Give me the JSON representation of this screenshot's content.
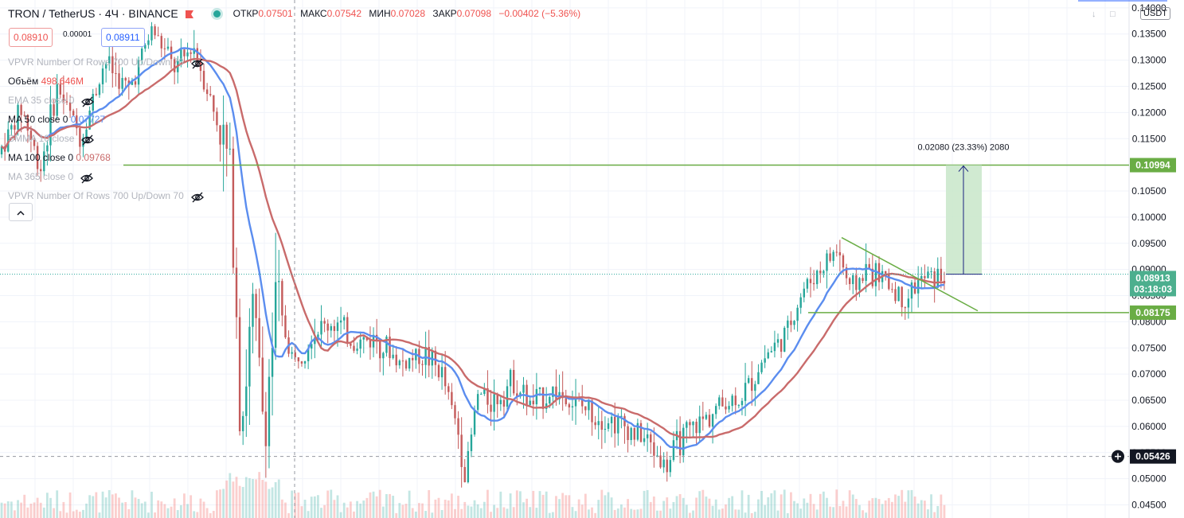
{
  "header": {
    "symbol": "TRON / TetherUS · 4Ч · BINANCE",
    "open_label": "ОТКР",
    "open": "0.07501",
    "high_label": "МАКС",
    "high": "0.07542",
    "low_label": "МИН",
    "low": "0.07028",
    "close_label": "ЗАКР",
    "close": "0.07098",
    "change": "−0.00402 (−5.36%)",
    "sell_price": "0.08910",
    "spread": "0.00001",
    "buy_price": "0.08911"
  },
  "legend": {
    "vpvr1": "VPVR Number Of Rows 700 Up/Down 70",
    "volume_label": "Объём",
    "volume_value": "498.646M",
    "ema": "EMA 35 close 0",
    "ma50": "MA 50 close 0",
    "ma50_value": "0.07727",
    "smma": "SMMA 10 close",
    "ma100": "MA 100 close 0",
    "ma100_value": "0.09768",
    "ma365": "MA 365 close 0",
    "vpvr2": "VPVR Number Of Rows 700 Up/Down 70",
    "collapse_icon": "chevron-up-icon"
  },
  "axis": {
    "currency": "USDT",
    "price_tag": "0.08913",
    "countdown": "03:18:03",
    "cursor_price": "0.05426",
    "level_upper": "0.10994",
    "level_lower": "0.08175"
  },
  "chart_data": {
    "type": "candlestick",
    "title": "TRON / TetherUS · 4Ч · BINANCE",
    "ylim": [
      0.0425,
      0.1415
    ],
    "y_ticks": [
      0.045,
      0.05,
      0.055,
      0.06,
      0.065,
      0.07,
      0.075,
      0.08,
      0.085,
      0.09,
      0.095,
      0.1,
      0.105,
      0.11,
      0.115,
      0.12,
      0.125,
      0.13,
      0.135,
      0.14
    ],
    "y_tick_labels": [
      "0.04500",
      "0.05000",
      "0.05500",
      "0.06000",
      "0.06500",
      "0.07000",
      "0.07500",
      "0.08000",
      "0.08500",
      "0.09000",
      "0.09500",
      "0.10000",
      "0.10500",
      "0.11000",
      "0.11500",
      "0.12000",
      "0.12500",
      "0.13000",
      "0.13500",
      "0.14000"
    ],
    "grid": true,
    "colors": {
      "up": "#26a69a",
      "down": "#ef5350",
      "ma50": "#5b8def",
      "ma100": "#c96b6b",
      "levels": "#6aad45",
      "measure_fill": "#c8e6c9",
      "measure_line": "#1a237e"
    },
    "price_path": [
      [
        0,
        0.112
      ],
      [
        0.02,
        0.121
      ],
      [
        0.035,
        0.109
      ],
      [
        0.05,
        0.125
      ],
      [
        0.07,
        0.115
      ],
      [
        0.09,
        0.13
      ],
      [
        0.11,
        0.124
      ],
      [
        0.13,
        0.136
      ],
      [
        0.15,
        0.128
      ],
      [
        0.165,
        0.133
      ],
      [
        0.18,
        0.122
      ],
      [
        0.195,
        0.11
      ],
      [
        0.2,
        0.093
      ],
      [
        0.205,
        0.06
      ],
      [
        0.215,
        0.082
      ],
      [
        0.225,
        0.06
      ],
      [
        0.235,
        0.084
      ],
      [
        0.25,
        0.072
      ],
      [
        0.265,
        0.078
      ],
      [
        0.285,
        0.08
      ],
      [
        0.3,
        0.076
      ],
      [
        0.32,
        0.077
      ],
      [
        0.34,
        0.072
      ],
      [
        0.36,
        0.074
      ],
      [
        0.375,
        0.07
      ],
      [
        0.39,
        0.058
      ],
      [
        0.395,
        0.05
      ],
      [
        0.405,
        0.066
      ],
      [
        0.42,
        0.065
      ],
      [
        0.435,
        0.069
      ],
      [
        0.45,
        0.064
      ],
      [
        0.47,
        0.067
      ],
      [
        0.49,
        0.064
      ],
      [
        0.51,
        0.062
      ],
      [
        0.53,
        0.06
      ],
      [
        0.55,
        0.057
      ],
      [
        0.565,
        0.052
      ],
      [
        0.575,
        0.057
      ],
      [
        0.59,
        0.06
      ],
      [
        0.61,
        0.064
      ],
      [
        0.63,
        0.066
      ],
      [
        0.65,
        0.074
      ],
      [
        0.665,
        0.077
      ],
      [
        0.68,
        0.086
      ],
      [
        0.695,
        0.09
      ],
      [
        0.71,
        0.094
      ],
      [
        0.72,
        0.086
      ],
      [
        0.735,
        0.09
      ],
      [
        0.75,
        0.088
      ],
      [
        0.765,
        0.084
      ],
      [
        0.78,
        0.088
      ],
      [
        0.795,
        0.0887
      ]
    ],
    "ma50_label": "0.07727",
    "ma100_label": "0.09768",
    "horizontal_levels": [
      0.10994,
      0.08175
    ],
    "trendline": {
      "from": 0.0961,
      "to": 0.0821
    },
    "measure": {
      "label": "0.02080 (23.33%) 2080",
      "from": 0.0891,
      "to": 0.10994
    }
  }
}
